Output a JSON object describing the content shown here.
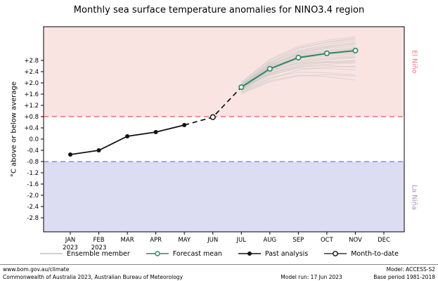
{
  "chart_data": {
    "type": "line",
    "title": "Monthly sea surface temperature anomalies for NINO3.4 region",
    "ylabel": "°C above or below average",
    "xlabel": "",
    "ylim": [
      -3.3,
      4.0
    ],
    "yticks": [
      2.8,
      2.4,
      2.0,
      1.6,
      1.2,
      0.8,
      0.4,
      0.0,
      -0.4,
      -0.8,
      -1.2,
      -1.6,
      -2.0,
      -2.4,
      -2.8
    ],
    "x_categories": [
      "JAN",
      "FEB",
      "MAR",
      "APR",
      "MAY",
      "JUN",
      "JUL",
      "AUG",
      "SEP",
      "OCT",
      "NOV",
      "DEC"
    ],
    "x_year_labels": {
      "JAN": "2023",
      "FEB": "2023"
    },
    "grid": false,
    "legend_position": "bottom",
    "bands": {
      "el_nino": {
        "label": "El Niño",
        "threshold": 0.8,
        "fill": "#f9e4e1",
        "line_color": "#e05c5c",
        "label_color": "#e8837d"
      },
      "la_nina": {
        "label": "La Niña",
        "threshold": -0.8,
        "fill": "#dcdcf2",
        "line_color": "#7b7bc8",
        "label_color": "#b48cc0"
      }
    },
    "series": {
      "ensemble": {
        "label": "Ensemble member",
        "color": "#c4c4c4",
        "x": [
          "JUL",
          "AUG",
          "SEP",
          "OCT",
          "NOV"
        ],
        "members": [
          [
            1.78,
            2.32,
            2.62,
            2.72,
            2.78
          ],
          [
            1.82,
            2.48,
            2.88,
            3.02,
            3.1
          ],
          [
            1.9,
            2.62,
            3.08,
            3.28,
            3.38
          ],
          [
            1.7,
            2.18,
            2.38,
            2.36,
            2.28
          ],
          [
            1.86,
            2.55,
            2.96,
            3.12,
            3.22
          ],
          [
            1.95,
            2.72,
            3.22,
            3.45,
            3.55
          ],
          [
            1.64,
            2.08,
            2.28,
            2.22,
            2.1
          ],
          [
            1.8,
            2.42,
            2.72,
            2.82,
            2.9
          ],
          [
            1.92,
            2.66,
            3.02,
            3.22,
            3.32
          ],
          [
            2.0,
            2.8,
            3.25,
            3.45,
            3.6
          ],
          [
            1.72,
            2.36,
            2.66,
            2.76,
            2.8
          ],
          [
            1.85,
            2.5,
            2.8,
            2.9,
            2.96
          ],
          [
            1.76,
            2.44,
            2.86,
            3.02,
            3.06
          ],
          [
            1.9,
            2.56,
            2.92,
            3.06,
            3.16
          ],
          [
            1.8,
            2.3,
            2.52,
            2.52,
            2.46
          ],
          [
            1.96,
            2.74,
            3.14,
            3.38,
            3.5
          ],
          [
            1.62,
            2.04,
            2.24,
            2.3,
            2.24
          ],
          [
            1.86,
            2.6,
            3.06,
            3.26,
            3.4
          ],
          [
            1.74,
            2.4,
            2.76,
            2.86,
            2.92
          ],
          [
            1.92,
            2.7,
            3.12,
            3.32,
            3.44
          ],
          [
            1.8,
            2.46,
            2.7,
            2.74,
            2.7
          ],
          [
            2.02,
            2.84,
            3.3,
            3.52,
            3.64
          ],
          [
            1.7,
            2.26,
            2.56,
            2.62,
            2.56
          ],
          [
            1.85,
            2.52,
            2.86,
            2.96,
            3.02
          ],
          [
            1.66,
            2.14,
            2.46,
            2.56,
            2.6
          ],
          [
            1.9,
            2.58,
            2.96,
            3.12,
            3.2
          ],
          [
            1.78,
            2.34,
            2.58,
            2.66,
            2.74
          ],
          [
            1.88,
            2.64,
            3.0,
            3.16,
            3.26
          ]
        ]
      },
      "forecast_mean": {
        "label": "Forecast mean",
        "color": "#2f8561",
        "x": [
          "JUL",
          "AUG",
          "SEP",
          "OCT",
          "NOV"
        ],
        "values": [
          1.85,
          2.5,
          2.9,
          3.05,
          3.15
        ]
      },
      "past_analysis": {
        "label": "Past analysis",
        "color": "#111111",
        "x": [
          "JAN",
          "FEB",
          "MAR",
          "APR",
          "MAY"
        ],
        "values": [
          -0.55,
          -0.4,
          0.1,
          0.25,
          0.5
        ]
      },
      "month_to_date": {
        "label": "Month-to-date",
        "color": "#111111",
        "x": [
          "JUN"
        ],
        "values": [
          0.78
        ]
      }
    }
  },
  "footer": {
    "left_line1": "www.bom.gov.au/climate",
    "left_line2": "Commonwealth of Australia 2023, Australian Bureau of Meteorology",
    "right_line1": "Model: ACCESS-S2",
    "right_line2a": "Model run: 17 Jun 2023",
    "right_line2b": "Base period 1981-2018"
  }
}
